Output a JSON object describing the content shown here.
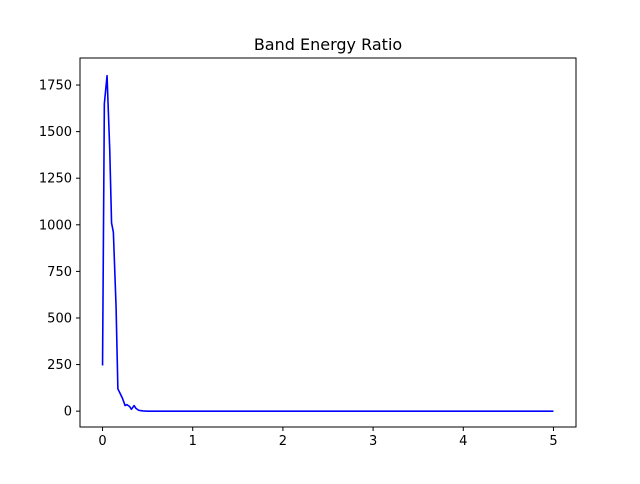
{
  "chart_data": {
    "type": "line",
    "title": "Band Energy Ratio",
    "xlabel": "",
    "ylabel": "",
    "xlim": [
      -0.25,
      5.25
    ],
    "ylim": [
      -85,
      1895
    ],
    "x_ticks": [
      0,
      1,
      2,
      3,
      4,
      5
    ],
    "x_tick_labels": [
      "0",
      "1",
      "2",
      "3",
      "4",
      "5"
    ],
    "y_ticks": [
      0,
      250,
      500,
      750,
      1000,
      1250,
      1500,
      1750
    ],
    "y_tick_labels": [
      "0",
      "250",
      "500",
      "750",
      "1000",
      "1250",
      "1500",
      "1750"
    ],
    "grid": false,
    "series": [
      {
        "color": "#0000ff",
        "x": [
          0.0,
          0.02,
          0.05,
          0.08,
          0.1,
          0.12,
          0.15,
          0.17,
          0.2,
          0.22,
          0.25,
          0.27,
          0.3,
          0.32,
          0.35,
          0.37,
          0.4,
          0.42,
          0.45,
          0.5,
          0.6,
          0.8,
          1.0,
          1.5,
          2.0,
          2.5,
          3.0,
          3.5,
          4.0,
          4.5,
          5.0
        ],
        "y": [
          245,
          1650,
          1800,
          1400,
          1010,
          960,
          560,
          120,
          90,
          70,
          30,
          35,
          25,
          10,
          30,
          15,
          5,
          3,
          1,
          0,
          0,
          0,
          0,
          0,
          0,
          0,
          0,
          0,
          0,
          0,
          0
        ]
      }
    ]
  }
}
